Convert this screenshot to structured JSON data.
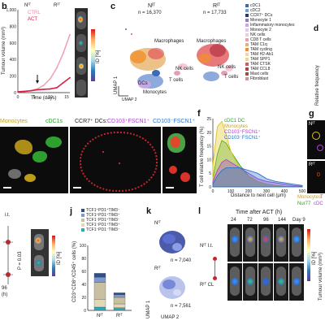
{
  "colors": {
    "ctrl": "#f2a4b6",
    "act": "#d81f48",
    "green": "#22a42a",
    "yellow": "#e1c21a",
    "purple": "#b03fd6",
    "blue": "#2a73c8",
    "dark": "#0b0b0b"
  },
  "panels": {
    "b": {
      "letter": "b",
      "title_nt": "Nᴵᵀ",
      "title_rt": "Rᴵᵀ",
      "legend": [
        "CTRL",
        "ACT"
      ],
      "xlabel": "Time (days)",
      "ylabel": "Tumour volume (mm³)",
      "yticks": [
        "0",
        "200",
        "400",
        "600",
        "800",
        "1,000"
      ],
      "xticks": [
        "0",
        "5",
        "10",
        "15"
      ],
      "scale_label": "ID [%]",
      "scale_ticks": [
        "0",
        "0.2",
        "0.4",
        "0.6",
        "0.8",
        "1.0"
      ]
    },
    "c": {
      "letter": "c",
      "left_title": "Nᴵᵀ",
      "left_n": "n = 16,370",
      "right_title": "Rᴵᵀ",
      "right_n": "n = 17,733",
      "axis1": "UMAP 1",
      "axis2": "UMAP 2",
      "labels": [
        "Macrophages",
        "NK cells",
        "T cells",
        "DCs",
        "Monocytes"
      ],
      "legend": [
        "cDC1",
        "cDC2",
        "CCR7⁺ DCs",
        "Monocyte 1",
        "Inflammatory monocytes",
        "Monocyte 2",
        "NK cells",
        "CD8 T cells",
        "TAM C1q",
        "TAM cycling",
        "TAM H2-Ab1",
        "TAM SPP1",
        "TAM CTSK",
        "TAM CCL8",
        "Mast cells",
        "Fibroblast"
      ],
      "legend_colors": [
        "#3a6bb5",
        "#7a9bd6",
        "#1c3f7a",
        "#9c77c9",
        "#c9a7e2",
        "#e0c8ee",
        "#f7c9d8",
        "#e3a0b4",
        "#e7b36a",
        "#f28e2b",
        "#fcd19e",
        "#f3d28a",
        "#e15759",
        "#ba3c4a",
        "#8c564b",
        "#c49c94"
      ]
    },
    "d": {
      "letter": "d",
      "ylabel": "Relative frequency"
    },
    "e": {
      "titles": [
        "Monocytes",
        "cDC1s",
        "CCR7⁺ DCs:",
        "CD103⁺FSCN1⁺",
        "CD103⁻FSCN1⁺"
      ]
    },
    "f": {
      "letter": "f",
      "xlabel": "Distance to next cell (μm)",
      "ylabel": "T cell relative frequency (%)",
      "legend": [
        "cDC1 DC",
        "Monocytes",
        "CD103⁺FSCN1⁺",
        "CD103⁻FSCN1⁺"
      ],
      "xticks": [
        "0",
        "100",
        "200",
        "300",
        "400",
        "500"
      ],
      "yticks": [
        "0",
        "5",
        "10",
        "15",
        "20",
        "25"
      ]
    },
    "g": {
      "letter": "g",
      "top": "Nᴵᵀ",
      "bottom": "Rᴵᵀ",
      "legend": [
        "Monocytes",
        "T",
        "Nur77",
        "cDC"
      ]
    },
    "h": {
      "label_it": "i.t.",
      "xtick": "96",
      "xunit": "(h)",
      "scale": "ID [%]",
      "pval": "P = 0.03"
    },
    "j": {
      "letter": "j",
      "legend": [
        "TCF1⁺PD1⁺TIM3⁻",
        "TCF1⁺PD1⁺TIM3⁺",
        "TCF1⁻PD1⁺TIM3⁻",
        "TCF1⁻PD1⁺TIM3⁺",
        "TCF1⁻PD1⁻TIM3⁻"
      ],
      "legend_colors": [
        "#2e4f8a",
        "#7e9acb",
        "#c9c0a2",
        "#e3d8b5",
        "#2aa9bd"
      ],
      "ylabel": "CD3⁺CD8⁺/CD45⁺ cells (%)",
      "yticks": [
        "0",
        "20",
        "40",
        "60",
        "80",
        "100"
      ],
      "categories": [
        "Nᴵᵀ",
        "Rᴵᵀ"
      ]
    },
    "k": {
      "letter": "k",
      "top": "Nᴵᵀ",
      "top_n": "n = 7,040",
      "bottom": "Rᴵᵀ",
      "bottom_n": "n = 7,561",
      "axis1": "UMAP 1",
      "axis2": "UMAP 2"
    },
    "l": {
      "letter": "l",
      "title": "Time after ACT (h)",
      "times": [
        "24",
        "72",
        "96",
        "144",
        "Day 9"
      ],
      "row1": "Nᴵᵀ I.t.",
      "row2": "Rᴵᵀ CL",
      "scale": "ID [%]",
      "ylabel": "Tumour volume (mm³)"
    }
  },
  "chart_data": [
    {
      "type": "line",
      "panel": "b",
      "x": [
        0,
        2,
        4,
        6,
        8,
        10,
        12,
        14,
        16
      ],
      "series": [
        {
          "name": "CTRL",
          "values": [
            10,
            15,
            25,
            45,
            90,
            170,
            300,
            480,
            700
          ]
        },
        {
          "name": "ACT",
          "values": [
            10,
            15,
            22,
            35,
            40,
            45,
            60,
            120,
            180
          ]
        }
      ],
      "xlabel": "Time (days)",
      "ylabel": "Tumour volume (mm³)",
      "xlim": [
        0,
        16
      ],
      "ylim": [
        0,
        1000
      ]
    },
    {
      "type": "area",
      "panel": "f",
      "x": [
        0,
        25,
        50,
        75,
        100,
        150,
        200,
        250,
        300,
        350,
        400,
        450,
        500
      ],
      "series": [
        {
          "name": "cDC1 DC",
          "values": [
            3,
            12,
            17,
            16,
            13,
            8,
            4,
            2,
            1,
            0.5,
            0.2,
            0.1,
            0
          ]
        },
        {
          "name": "Monocytes",
          "values": [
            8,
            22,
            24,
            19,
            13,
            7,
            4,
            2,
            1,
            0.5,
            0.2,
            0.1,
            0
          ]
        },
        {
          "name": "CD103⁺FSCN1⁺",
          "values": [
            2,
            6,
            9,
            10,
            9,
            7,
            5,
            3,
            2,
            1.5,
            1,
            0.5,
            0.2
          ]
        },
        {
          "name": "CD103⁻FSCN1⁺",
          "values": [
            1,
            4,
            6,
            7,
            7,
            7,
            6,
            5,
            3,
            2,
            1.5,
            1,
            0.5
          ]
        }
      ],
      "xlabel": "Distance to next cell (μm)",
      "ylabel": "T cell relative frequency (%)",
      "xlim": [
        0,
        500
      ],
      "ylim": [
        0,
        25
      ]
    },
    {
      "type": "bar",
      "panel": "j",
      "stacked": true,
      "categories": [
        "Nᴵᵀ",
        "Rᴵᵀ"
      ],
      "series": [
        {
          "name": "TCF1⁻PD1⁻TIM3⁻",
          "values": [
            5,
            4
          ]
        },
        {
          "name": "TCF1⁻PD1⁺TIM3⁺",
          "values": [
            12,
            6
          ]
        },
        {
          "name": "TCF1⁻PD1⁺TIM3⁻",
          "values": [
            26,
            10
          ]
        },
        {
          "name": "TCF1⁺PD1⁺TIM3⁺",
          "values": [
            8,
            4
          ]
        },
        {
          "name": "TCF1⁺PD1⁺TIM3⁻",
          "values": [
            6,
            3
          ]
        }
      ],
      "ylabel": "CD3⁺CD8⁺/CD45⁺ cells (%)",
      "ylim": [
        0,
        100
      ]
    }
  ]
}
